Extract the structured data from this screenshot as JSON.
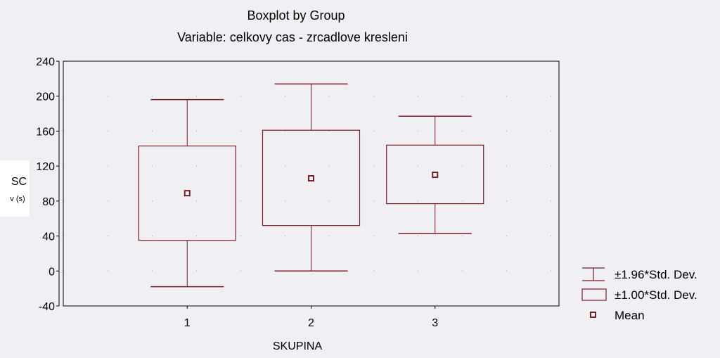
{
  "chart_data": {
    "type": "boxplot",
    "title": "Boxplot by Group",
    "subtitle": "Variable: celkovy cas - zrcadlove kresleni",
    "xlabel": "SKUPINA",
    "ylabel": "SC",
    "ylabel_sub": "v (s)",
    "categories": [
      "1",
      "2",
      "3"
    ],
    "ylim": [
      -40,
      240
    ],
    "yticks": [
      -40,
      0,
      40,
      80,
      120,
      160,
      200,
      240
    ],
    "grid": true,
    "legend_position": "bottom-right",
    "groups": [
      {
        "category": "1",
        "mean": 89,
        "sd1_low": 35,
        "sd1_high": 143,
        "sd196_low": -18,
        "sd196_high": 196
      },
      {
        "category": "2",
        "mean": 106,
        "sd1_low": 52,
        "sd1_high": 161,
        "sd196_low": 0,
        "sd196_high": 214
      },
      {
        "category": "3",
        "mean": 110,
        "sd1_low": 77,
        "sd1_high": 144,
        "sd196_low": 43,
        "sd196_high": 177
      }
    ],
    "legend": [
      {
        "key": "whisker",
        "label": "±1.96*Std. Dev."
      },
      {
        "key": "box",
        "label": "±1.00*Std. Dev."
      },
      {
        "key": "mean",
        "label": "Mean"
      }
    ],
    "colors": {
      "plot_background": "#f0eff4",
      "series": "#7a1b25",
      "axis": "#000000",
      "grid": "#9a9a9a",
      "ylabel_panel": "#ffffff"
    }
  }
}
